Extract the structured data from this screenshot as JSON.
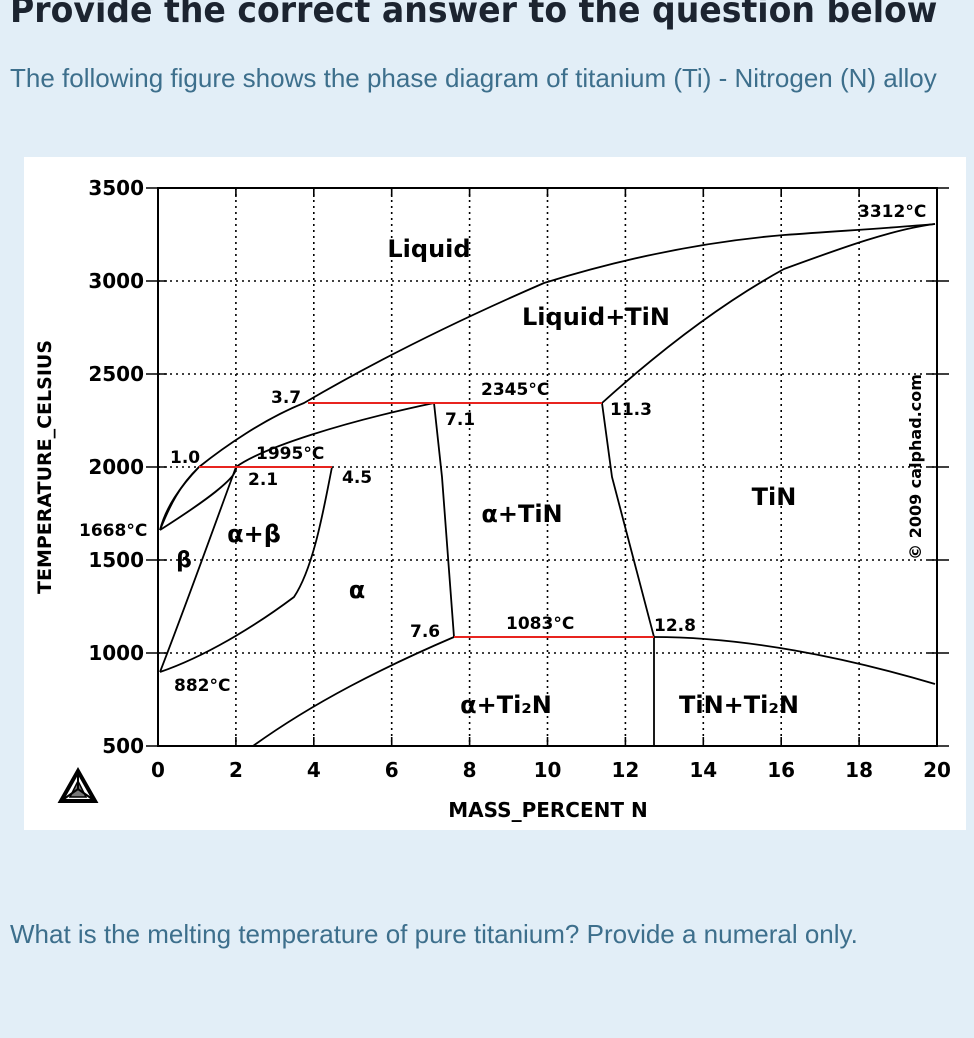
{
  "header": "Provide the correct answer to the question below",
  "intro": "The following figure shows the phase diagram of titanium (Ti) - Nitrogen (N) alloy",
  "question": "What is the melting temperature of pure titanium? Provide a numeral only.",
  "diagram": {
    "xlabel": "MASS_PERCENT N",
    "ylabel": "TEMPERATURE_CELSIUS",
    "copyright": "© 2009 calphad.com",
    "x_ticks": [
      "0",
      "2",
      "4",
      "6",
      "8",
      "10",
      "12",
      "14",
      "16",
      "18",
      "20"
    ],
    "y_ticks": [
      "500",
      "1000",
      "1500",
      "2000",
      "2500",
      "3000",
      "3500"
    ],
    "phase_labels": {
      "liquid": "Liquid",
      "liquid_tin": "Liquid+TiN",
      "alpha_tin": "α+TiN",
      "tin": "TiN",
      "alpha_beta": "α+β",
      "alpha": "α",
      "beta": "β",
      "alpha_ti2n": "α+Ti₂N",
      "tin_ti2n": "TiN+Ti₂N"
    },
    "annotations": {
      "t3312": "3312°C",
      "t2345": "2345°C",
      "t1995": "1995°C",
      "t1668": "1668°C",
      "t1083": "1083°C",
      "t882": "882°C",
      "c3_7": "3.7",
      "c7_1": "7.1",
      "c11_3": "11.3",
      "c1_0": "1.0",
      "c2_1": "2.1",
      "c4_5": "4.5",
      "c7_6": "7.6",
      "c12_8": "12.8"
    },
    "colors": {
      "isotherm": "#e8241f",
      "line": "#000000",
      "grid": "#000000"
    }
  }
}
